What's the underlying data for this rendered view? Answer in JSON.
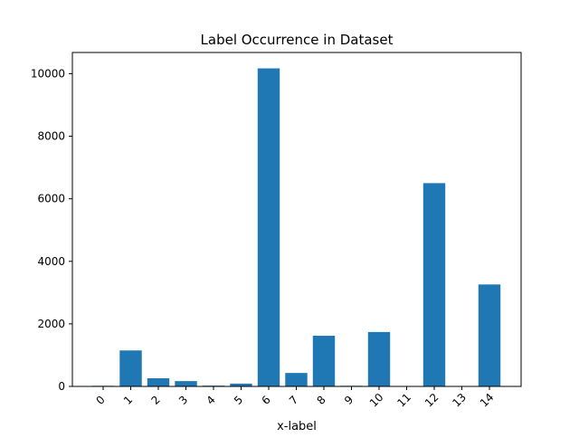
{
  "chart_data": {
    "type": "bar",
    "title": "Label Occurrence in Dataset",
    "xlabel": "x-label",
    "ylabel": "",
    "categories": [
      "0",
      "1",
      "2",
      "3",
      "4",
      "5",
      "6",
      "7",
      "8",
      "9",
      "10",
      "11",
      "12",
      "13",
      "14"
    ],
    "values": [
      20,
      1150,
      260,
      170,
      25,
      90,
      10170,
      430,
      1620,
      20,
      1740,
      0,
      6500,
      0,
      3260
    ],
    "yticks": [
      "0",
      "2000",
      "4000",
      "6000",
      "8000",
      "10000"
    ],
    "ytick_values": [
      0,
      2000,
      4000,
      6000,
      8000,
      10000
    ],
    "ylim": [
      0,
      10678
    ],
    "bar_color": "#1f77b4",
    "grid": false,
    "legend": "none"
  }
}
